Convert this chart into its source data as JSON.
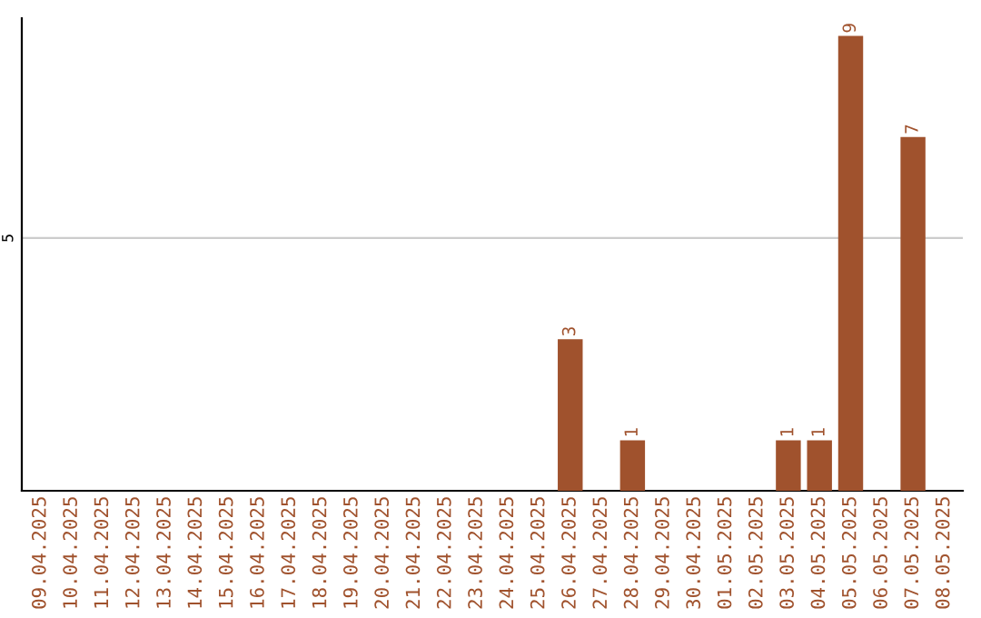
{
  "chart_data": {
    "type": "bar",
    "categories": [
      "09.04.2025",
      "10.04.2025",
      "11.04.2025",
      "12.04.2025",
      "13.04.2025",
      "14.04.2025",
      "15.04.2025",
      "16.04.2025",
      "17.04.2025",
      "18.04.2025",
      "19.04.2025",
      "20.04.2025",
      "21.04.2025",
      "22.04.2025",
      "23.04.2025",
      "24.04.2025",
      "25.04.2025",
      "26.04.2025",
      "27.04.2025",
      "28.04.2025",
      "29.04.2025",
      "30.04.2025",
      "01.05.2025",
      "02.05.2025",
      "03.05.2025",
      "04.05.2025",
      "05.05.2025",
      "06.05.2025",
      "07.05.2025",
      "08.05.2025"
    ],
    "values": [
      null,
      null,
      null,
      null,
      null,
      null,
      null,
      null,
      null,
      null,
      null,
      null,
      null,
      null,
      null,
      null,
      null,
      3,
      null,
      1,
      null,
      null,
      null,
      null,
      1,
      1,
      9,
      null,
      7,
      null
    ],
    "ylim": [
      0,
      9.35
    ],
    "value_labels": [
      null,
      null,
      null,
      null,
      null,
      null,
      null,
      null,
      null,
      null,
      null,
      null,
      null,
      null,
      null,
      null,
      null,
      "3",
      null,
      "1",
      null,
      null,
      null,
      null,
      "1",
      "1",
      "9",
      null,
      "7",
      null
    ],
    "color": "#a0522d",
    "ref_lines": [
      {
        "axis": "y",
        "value": 5,
        "label": "5",
        "color": "#cccccc"
      }
    ]
  }
}
